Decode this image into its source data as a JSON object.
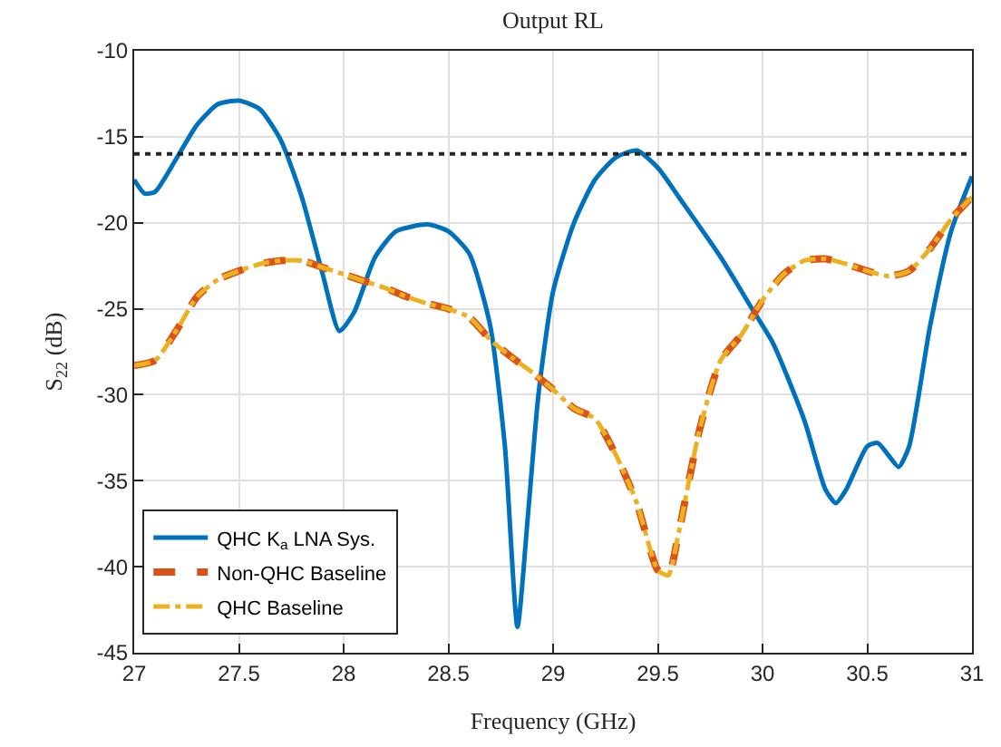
{
  "chart_data": {
    "type": "line",
    "title": "Output RL",
    "xlabel": "Frequency (GHz)",
    "ylabel": "S$_{22}$ (dB)",
    "xlim": [
      27,
      31
    ],
    "xticks": [
      27,
      27.5,
      28,
      28.5,
      29,
      29.5,
      30,
      30.5,
      31
    ],
    "ylim": [
      -45,
      -10
    ],
    "yticks": [
      -45,
      -40,
      -35,
      -30,
      -25,
      -20,
      -15,
      -10
    ],
    "grid": true,
    "legend": "bottom left",
    "marker": "none",
    "series": [
      {
        "name": "QHC K$_{a}$ LNA Sys.",
        "color": "#0072bd",
        "line_style": "solid",
        "x": [
          27.0,
          27.05,
          27.1,
          27.2,
          27.3,
          27.4,
          27.5,
          27.6,
          27.7,
          27.8,
          27.9,
          27.98,
          28.05,
          28.15,
          28.25,
          28.4,
          28.5,
          28.6,
          28.7,
          28.77,
          28.83,
          28.88,
          28.93,
          29.0,
          29.1,
          29.2,
          29.3,
          29.4,
          29.5,
          29.6,
          29.8,
          29.95,
          30.05,
          30.2,
          30.3,
          30.35,
          30.4,
          30.5,
          30.55,
          30.6,
          30.65,
          30.7,
          30.8,
          30.9,
          31.0
        ],
        "values": [
          -17.5,
          -18.3,
          -18.2,
          -16.3,
          -14.3,
          -13.1,
          -12.9,
          -13.4,
          -15.2,
          -18.5,
          -23,
          -26.3,
          -25.2,
          -22,
          -20.5,
          -20.1,
          -20.5,
          -21.8,
          -26,
          -33,
          -43.5,
          -37,
          -30,
          -24,
          -20,
          -17.5,
          -16.2,
          -15.8,
          -16.8,
          -18.5,
          -22,
          -25,
          -27,
          -31.5,
          -35.5,
          -36.3,
          -35.5,
          -33.0,
          -32.8,
          -33.5,
          -34.2,
          -33,
          -26,
          -20.5,
          -17.3
        ]
      },
      {
        "name": "Non-QHC Baseline",
        "color": "#d95319",
        "line_style": "dashed",
        "x": [
          27.0,
          27.1,
          27.2,
          27.3,
          27.4,
          27.5,
          27.6,
          27.7,
          27.8,
          27.9,
          28.0,
          28.1,
          28.2,
          28.3,
          28.4,
          28.5,
          28.6,
          28.7,
          28.8,
          28.9,
          29.0,
          29.1,
          29.2,
          29.3,
          29.4,
          29.5,
          29.55,
          29.6,
          29.7,
          29.8,
          29.9,
          30.0,
          30.1,
          30.2,
          30.3,
          30.4,
          30.5,
          30.6,
          30.7,
          30.8,
          30.9,
          31.0
        ],
        "values": [
          -28.3,
          -28,
          -26.3,
          -24.3,
          -23.3,
          -22.8,
          -22.4,
          -22.2,
          -22.2,
          -22.6,
          -23,
          -23.4,
          -23.8,
          -24.3,
          -24.7,
          -25,
          -25.5,
          -26.8,
          -27.8,
          -28.7,
          -29.7,
          -30.8,
          -31.4,
          -33.5,
          -36.3,
          -40.2,
          -40.5,
          -38,
          -32,
          -28,
          -26.5,
          -24.5,
          -23,
          -22.2,
          -22.1,
          -22.4,
          -22.8,
          -23.1,
          -22.8,
          -21.5,
          -19.8,
          -18.5
        ]
      },
      {
        "name": "QHC Baseline",
        "color": "#edb120",
        "line_style": "dashdot",
        "x": [
          27.0,
          27.1,
          27.2,
          27.3,
          27.4,
          27.5,
          27.6,
          27.7,
          27.8,
          27.9,
          28.0,
          28.1,
          28.2,
          28.3,
          28.4,
          28.5,
          28.6,
          28.7,
          28.8,
          28.9,
          29.0,
          29.1,
          29.2,
          29.3,
          29.4,
          29.5,
          29.55,
          29.6,
          29.7,
          29.8,
          29.9,
          30.0,
          30.1,
          30.2,
          30.3,
          30.4,
          30.5,
          30.6,
          30.7,
          30.8,
          30.9,
          31.0
        ],
        "values": [
          -28.3,
          -28,
          -26.3,
          -24.3,
          -23.3,
          -22.8,
          -22.4,
          -22.2,
          -22.2,
          -22.6,
          -23,
          -23.4,
          -23.8,
          -24.3,
          -24.7,
          -25,
          -25.5,
          -26.8,
          -27.8,
          -28.7,
          -29.7,
          -30.8,
          -31.4,
          -33.5,
          -36.3,
          -40.2,
          -40.5,
          -38,
          -32,
          -28,
          -26.5,
          -24.5,
          -23,
          -22.2,
          -22.1,
          -22.4,
          -22.8,
          -23.1,
          -22.8,
          -21.5,
          -19.8,
          -18.5
        ]
      }
    ],
    "ref_lines": [
      {
        "axis": "y",
        "value": -16,
        "color": "#262626",
        "line_style": "dotted"
      }
    ]
  }
}
